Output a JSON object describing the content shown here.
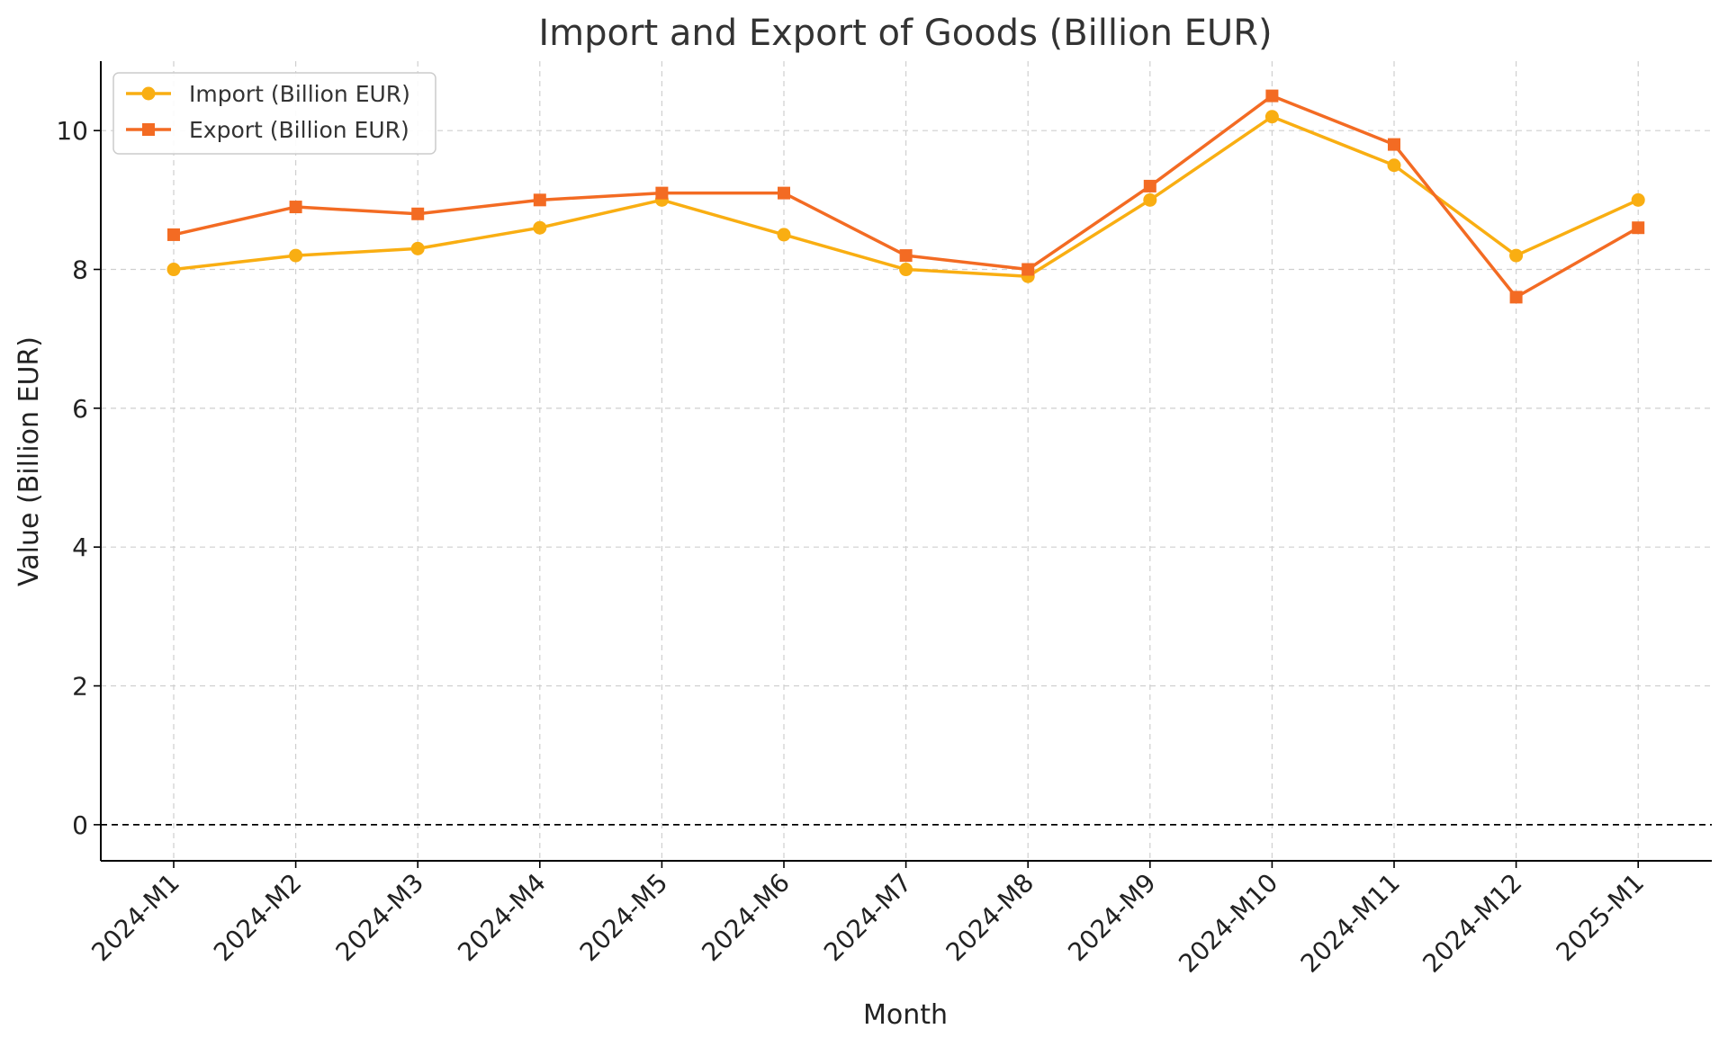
{
  "chart_data": {
    "type": "line",
    "title": "Import and Export of Goods (Billion EUR)",
    "xlabel": "Month",
    "ylabel": "Value (Billion EUR)",
    "categories": [
      "2024-M1",
      "2024-M2",
      "2024-M3",
      "2024-M4",
      "2024-M5",
      "2024-M6",
      "2024-M7",
      "2024-M8",
      "2024-M9",
      "2024-M10",
      "2024-M11",
      "2024-M12",
      "2025-M1"
    ],
    "series": [
      {
        "name": "Import (Billion EUR)",
        "color": "#F9AE12",
        "marker": "circle",
        "values": [
          8.0,
          8.2,
          8.3,
          8.6,
          9.0,
          8.5,
          8.0,
          7.9,
          9.0,
          10.2,
          9.5,
          8.2,
          9.0
        ]
      },
      {
        "name": "Export (Billion EUR)",
        "color": "#F36B23",
        "marker": "square",
        "values": [
          8.5,
          8.9,
          8.8,
          9.0,
          9.1,
          9.1,
          8.2,
          8.0,
          9.2,
          10.5,
          9.8,
          7.6,
          8.6
        ]
      }
    ],
    "ylim": [
      -0.52,
      11.0
    ],
    "yticks": [
      0,
      2,
      4,
      6,
      8,
      10
    ],
    "grid": true,
    "zero_line": true,
    "legend_position": "top-left"
  }
}
